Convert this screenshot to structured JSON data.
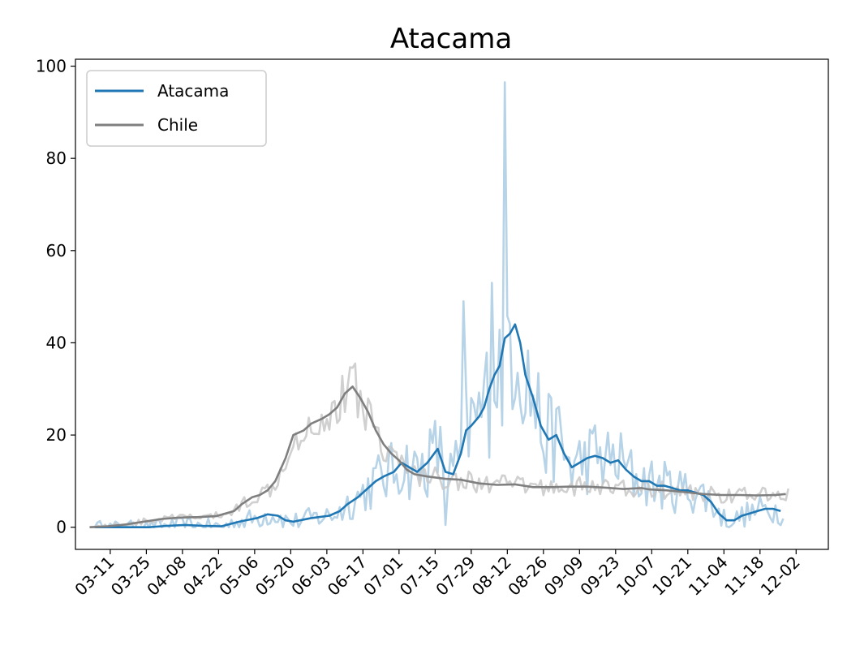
{
  "chart_data": {
    "type": "line",
    "title": "Atacama",
    "xlabel": "",
    "ylabel": "",
    "x_tick_labels": [
      "03-11",
      "03-25",
      "04-08",
      "04-22",
      "05-06",
      "05-20",
      "06-03",
      "06-17",
      "07-01",
      "07-15",
      "07-29",
      "08-12",
      "08-26",
      "09-09",
      "09-23",
      "10-07",
      "10-21",
      "11-04",
      "11-18",
      "12-02"
    ],
    "y_ticks": [
      0,
      20,
      40,
      60,
      80,
      100
    ],
    "ylim": [
      -4.8,
      101.5
    ],
    "x_range_days_from_0303": [
      -5.5,
      286.5
    ],
    "grid": false,
    "legend": {
      "placement": "top-left",
      "entries": [
        "Atacama",
        "Chile"
      ]
    },
    "colors": {
      "Atacama": "#1f77b4",
      "Chile": "#7f7f7f",
      "Atacama_raw": "#1f77b4",
      "Chile_raw": "#c8c8c8"
    },
    "series": [
      {
        "name": "Atacama",
        "style": "smoothed",
        "points": [
          [
            "03-05",
            0
          ],
          [
            "03-12",
            0
          ],
          [
            "03-19",
            0
          ],
          [
            "03-26",
            0
          ],
          [
            "04-02",
            0.3
          ],
          [
            "04-09",
            0.5
          ],
          [
            "04-16",
            0.3
          ],
          [
            "04-23",
            0.2
          ],
          [
            "04-30",
            1.2
          ],
          [
            "05-07",
            2
          ],
          [
            "05-11",
            2.8
          ],
          [
            "05-15",
            2.5
          ],
          [
            "05-18",
            1.5
          ],
          [
            "05-21",
            1.2
          ],
          [
            "05-28",
            2
          ],
          [
            "06-04",
            2.5
          ],
          [
            "06-08",
            3.5
          ],
          [
            "06-11",
            5
          ],
          [
            "06-15",
            6.5
          ],
          [
            "06-18",
            8
          ],
          [
            "06-22",
            10
          ],
          [
            "06-25",
            11
          ],
          [
            "06-29",
            12
          ],
          [
            "07-02",
            14
          ],
          [
            "07-05",
            13
          ],
          [
            "07-08",
            12
          ],
          [
            "07-12",
            14
          ],
          [
            "07-16",
            17
          ],
          [
            "07-19",
            12
          ],
          [
            "07-22",
            11.5
          ],
          [
            "07-25",
            16
          ],
          [
            "07-27",
            21
          ],
          [
            "07-29",
            22
          ],
          [
            "08-01",
            24
          ],
          [
            "08-03",
            26
          ],
          [
            "08-05",
            30
          ],
          [
            "08-07",
            33
          ],
          [
            "08-09",
            35
          ],
          [
            "08-11",
            41
          ],
          [
            "08-13",
            42
          ],
          [
            "08-15",
            44
          ],
          [
            "08-17",
            40
          ],
          [
            "08-19",
            33
          ],
          [
            "08-22",
            28
          ],
          [
            "08-25",
            22
          ],
          [
            "08-28",
            19
          ],
          [
            "08-31",
            20
          ],
          [
            "09-03",
            16
          ],
          [
            "09-06",
            13
          ],
          [
            "09-09",
            14
          ],
          [
            "09-12",
            15
          ],
          [
            "09-15",
            15.5
          ],
          [
            "09-18",
            15
          ],
          [
            "09-21",
            14
          ],
          [
            "09-24",
            14.5
          ],
          [
            "09-27",
            12.5
          ],
          [
            "09-30",
            11
          ],
          [
            "10-03",
            10
          ],
          [
            "10-06",
            10
          ],
          [
            "10-09",
            9
          ],
          [
            "10-12",
            9
          ],
          [
            "10-15",
            8.5
          ],
          [
            "10-18",
            8
          ],
          [
            "10-21",
            8
          ],
          [
            "10-24",
            7.5
          ],
          [
            "10-27",
            7
          ],
          [
            "10-30",
            5.5
          ],
          [
            "11-02",
            3
          ],
          [
            "11-05",
            1.5
          ],
          [
            "11-08",
            1.5
          ],
          [
            "11-11",
            2.5
          ],
          [
            "11-14",
            3
          ],
          [
            "11-17",
            3.5
          ],
          [
            "11-20",
            4
          ],
          [
            "11-23",
            4
          ],
          [
            "11-26",
            3.5
          ]
        ]
      },
      {
        "name": "Chile",
        "style": "smoothed",
        "points": [
          [
            "03-03",
            0
          ],
          [
            "03-10",
            0.2
          ],
          [
            "03-17",
            0.6
          ],
          [
            "03-24",
            1.2
          ],
          [
            "03-31",
            1.8
          ],
          [
            "04-07",
            2.1
          ],
          [
            "04-14",
            2.2
          ],
          [
            "04-21",
            2.4
          ],
          [
            "04-28",
            3.5
          ],
          [
            "05-01",
            5
          ],
          [
            "05-05",
            6.5
          ],
          [
            "05-08",
            7
          ],
          [
            "05-11",
            8
          ],
          [
            "05-14",
            10
          ],
          [
            "05-18",
            15
          ],
          [
            "05-21",
            20
          ],
          [
            "05-25",
            21
          ],
          [
            "05-28",
            22.5
          ],
          [
            "06-01",
            23.5
          ],
          [
            "06-04",
            24.5
          ],
          [
            "06-07",
            26
          ],
          [
            "06-10",
            29
          ],
          [
            "06-13",
            30.5
          ],
          [
            "06-16",
            28
          ],
          [
            "06-19",
            25
          ],
          [
            "06-22",
            21
          ],
          [
            "06-25",
            18
          ],
          [
            "06-28",
            16
          ],
          [
            "07-01",
            14.5
          ],
          [
            "07-04",
            12.5
          ],
          [
            "07-07",
            11.5
          ],
          [
            "07-12",
            11
          ],
          [
            "07-19",
            10.5
          ],
          [
            "07-25",
            10.3
          ],
          [
            "08-01",
            9.5
          ],
          [
            "08-08",
            9.2
          ],
          [
            "08-15",
            9.3
          ],
          [
            "08-22",
            8.7
          ],
          [
            "08-29",
            8.7
          ],
          [
            "09-05",
            8.8
          ],
          [
            "09-12",
            8.8
          ],
          [
            "09-19",
            8.6
          ],
          [
            "09-26",
            8.3
          ],
          [
            "10-03",
            8.5
          ],
          [
            "10-06",
            8.2
          ],
          [
            "10-13",
            8
          ],
          [
            "10-20",
            7.6
          ],
          [
            "10-27",
            7.2
          ],
          [
            "11-03",
            7
          ],
          [
            "11-10",
            7
          ],
          [
            "11-17",
            6.9
          ],
          [
            "11-24",
            7
          ],
          [
            "11-28",
            7.2
          ]
        ]
      }
    ]
  }
}
